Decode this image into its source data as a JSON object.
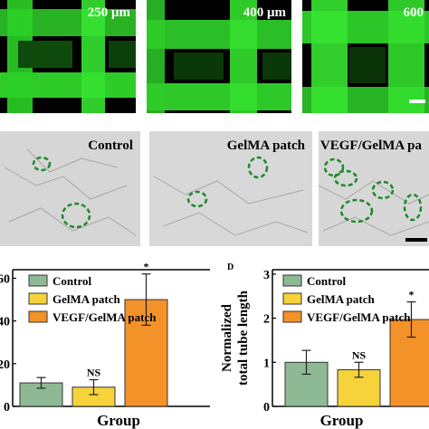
{
  "fluorescence_panels": [
    {
      "label": "250 μm"
    },
    {
      "label": "400 μm"
    },
    {
      "label": "600"
    }
  ],
  "phase_panels": [
    {
      "label": "Control"
    },
    {
      "label": "GelMA patch"
    },
    {
      "label": "VEGF/GelMA pa"
    }
  ],
  "colors": {
    "control": "#8dba95",
    "gelma": "#f6d33a",
    "vegf": "#f4922a",
    "fluorescence_green": "#33e12e",
    "annotation_circle": "#1d8a2a"
  },
  "chart_data": [
    {
      "type": "bar",
      "panel_letter": "",
      "categories": [
        "Control",
        "GelMA patch",
        "VEGF/GelMA patch"
      ],
      "values": [
        11,
        9,
        50
      ],
      "errors": [
        2.5,
        3.5,
        12
      ],
      "annotations": [
        "",
        "NS",
        "*"
      ],
      "ytick_labels": [
        "60",
        "40",
        "20",
        "0"
      ],
      "ytick_values": [
        60,
        40,
        20,
        0
      ],
      "ylim": [
        0,
        64
      ],
      "xlabel": "Group",
      "ylabel": "",
      "legend": [
        "Control",
        "GelMA patch",
        "VEGF/GelMA patch"
      ]
    },
    {
      "type": "bar",
      "panel_letter": "D",
      "categories": [
        "Control",
        "GelMA patch",
        "VEGF/GelMA patch"
      ],
      "values": [
        1.0,
        0.83,
        1.97
      ],
      "errors": [
        0.27,
        0.17,
        0.4
      ],
      "annotations": [
        "",
        "NS",
        "*"
      ],
      "ytick_labels": [
        "3",
        "2",
        "1",
        "0"
      ],
      "ytick_values": [
        3,
        2,
        1,
        0
      ],
      "ylim": [
        0,
        3.1
      ],
      "xlabel": "Group",
      "ylabel": "Normalized total tube length",
      "ylabel_lines": [
        "Normalized",
        "total tube length"
      ],
      "legend": [
        "Control",
        "GelMA patch",
        "VEGF/GelMA patch"
      ]
    }
  ]
}
